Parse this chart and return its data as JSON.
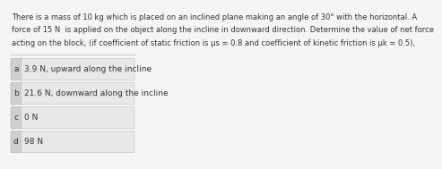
{
  "question_text": "There is a mass of 10 kg which is placed on an inclined plane making an angle of 30° with the horizontal. A\nforce of 15 N  is applied on the object along the incline in downward direction. Determine the value of net force\nacting on the block, (if coefficient of static friction is μs = 0.8 and coefficient of kinetic friction is μk = 0.5),",
  "options": [
    {
      "label": "a",
      "text": "3.9 N, upward along the incline"
    },
    {
      "label": "b",
      "text": "21.6 N, downward along the incline"
    },
    {
      "label": "c",
      "text": "0 N"
    },
    {
      "label": "d",
      "text": "98 N"
    }
  ],
  "bg_color": "#f5f5f5",
  "option_bg": "#e8e8e8",
  "label_bg": "#d0d0d0",
  "text_color": "#333333",
  "question_fontsize": 6.0,
  "option_fontsize": 6.5,
  "label_fontsize": 6.5
}
